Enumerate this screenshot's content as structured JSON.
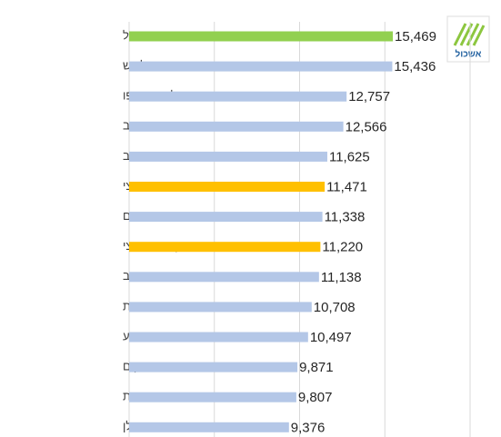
{
  "chart_data": {
    "type": "bar",
    "orientation": "horizontal",
    "categories": [
      "אשכול",
      "לכיש",
      "תל אביב -יפו",
      "שער הנגב",
      "רמת נגב",
      "ממוצע מ.א. ארצי",
      "מרחבים",
      "חציון מ.א. ארצי",
      "שדות נגב",
      "שדרות",
      "באר שבע",
      "אופקים",
      "נתיבות",
      "גולן"
    ],
    "values": [
      15469,
      15436,
      12757,
      12566,
      11625,
      11471,
      11338,
      11220,
      11138,
      10708,
      10497,
      9871,
      9807,
      9376
    ],
    "value_labels": [
      "15,469",
      "15,436",
      "12,757",
      "12,566",
      "11,625",
      "11,471",
      "11,338",
      "11,220",
      "11,138",
      "10,708",
      "10,497",
      "9,871",
      "9,807",
      "9,376"
    ],
    "colors": [
      "#92d050",
      "#b4c7e7",
      "#b4c7e7",
      "#b4c7e7",
      "#b4c7e7",
      "#ffc000",
      "#b4c7e7",
      "#ffc000",
      "#b4c7e7",
      "#b4c7e7",
      "#b4c7e7",
      "#b4c7e7",
      "#b4c7e7",
      "#b4c7e7"
    ],
    "xlim": [
      0,
      20000
    ],
    "gridlines": [
      0,
      5000,
      10000,
      15000,
      20000
    ],
    "grid": true,
    "logo": "אשכול"
  }
}
